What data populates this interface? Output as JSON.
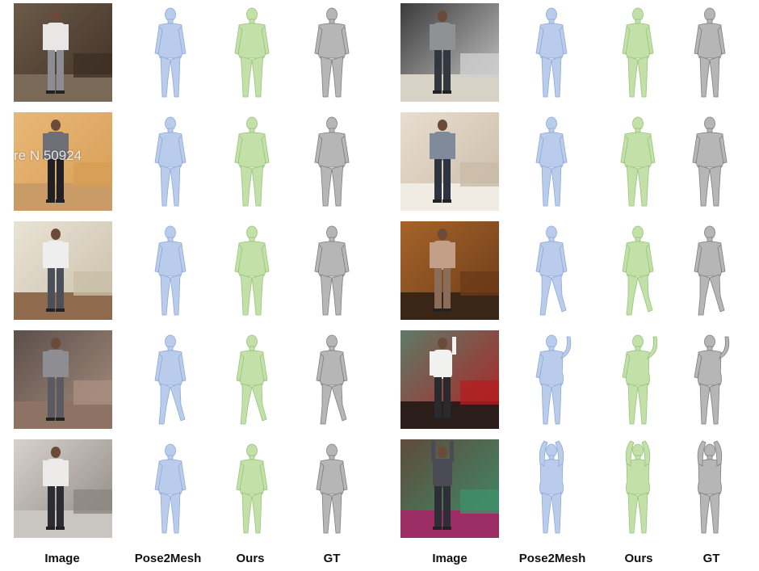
{
  "column_labels": [
    "Image",
    "Pose2Mesh",
    "Ours",
    "GT",
    "Image",
    "Pose2Mesh",
    "Ours",
    "GT"
  ],
  "overlay_text": "re N 50924",
  "colors": {
    "pose2mesh_fill": "#b9ccec",
    "pose2mesh_stroke": "#8fa9d6",
    "ours_fill": "#c3e0a9",
    "ours_stroke": "#96c47a",
    "gt_fill": "#b6b6b6",
    "gt_stroke": "#7e7e7e"
  },
  "icons": {
    "photo": "photo-icon",
    "pose2mesh": "pose2mesh-mesh-icon",
    "ours": "ours-mesh-icon",
    "gt": "gt-mesh-icon"
  }
}
